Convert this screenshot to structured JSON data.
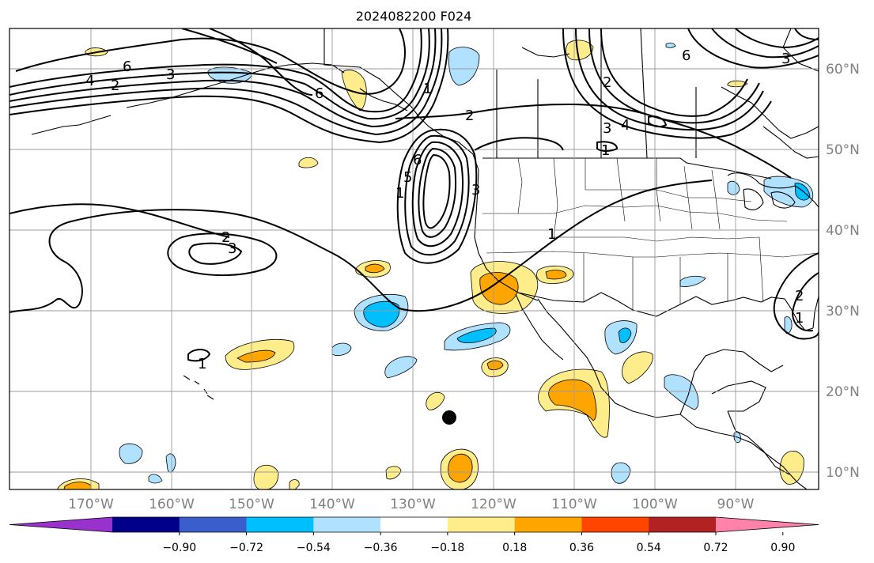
{
  "title": "2024082200 F024",
  "map": {
    "longitude_labels": [
      "170°W",
      "160°W",
      "150°W",
      "140°W",
      "130°W",
      "120°W",
      "110°W",
      "100°W",
      "90°W"
    ],
    "latitude_labels": [
      "60°N",
      "50°N",
      "40°N",
      "30°N",
      "20°N",
      "10°N"
    ],
    "contour_labels": [
      "6",
      "4",
      "2",
      "3",
      "6",
      "1",
      "2",
      "3",
      "4",
      "1",
      "2",
      "5",
      "6",
      "3",
      "1",
      "2",
      "3",
      "1",
      "1",
      "2",
      "1",
      "3",
      "6"
    ],
    "marker": "storm-position-dot",
    "colors": {
      "coast": "#000000",
      "grid": "#9b9b9b"
    }
  },
  "colorbar": {
    "ticks": [
      "−0.90",
      "−0.72",
      "−0.54",
      "−0.36",
      "−0.18",
      "0.18",
      "0.36",
      "0.54",
      "0.72",
      "0.90"
    ],
    "colors": [
      "#9932cc",
      "#00008b",
      "#3a5fcd",
      "#00bfff",
      "#b0e2ff",
      "#ffffff",
      "#ffec8b",
      "#ffa500",
      "#ff4500",
      "#b22222",
      "#ff82ab"
    ]
  }
}
